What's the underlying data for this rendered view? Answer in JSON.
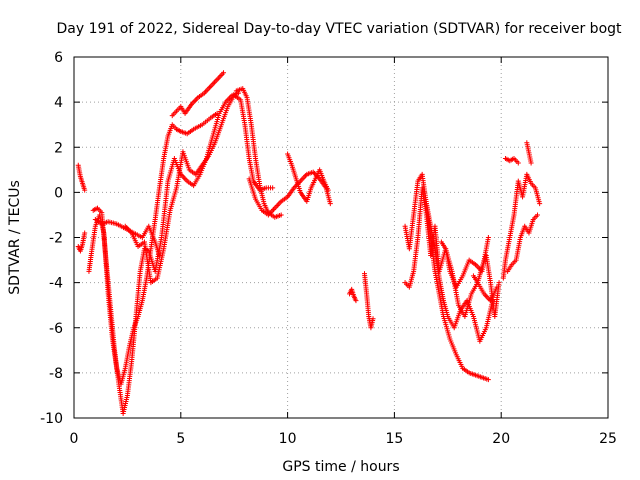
{
  "chart_data": {
    "type": "scatter",
    "title": "Day 191 of 2022, Sidereal Day-to-day VTEC variation (SDTVAR) for receiver bogt",
    "xlabel": "GPS time / hours",
    "ylabel": "SDTVAR / TECUs",
    "xlim": [
      0,
      25
    ],
    "ylim": [
      -10,
      6
    ],
    "xticks": [
      0,
      5,
      10,
      15,
      20,
      25
    ],
    "yticks": [
      -10,
      -8,
      -6,
      -4,
      -2,
      0,
      2,
      4,
      6
    ],
    "grid": true,
    "marker": "+",
    "series": [
      {
        "name": "SDTVAR",
        "color": "#ff0000",
        "tracks": [
          {
            "x": [
              0.2,
              0.3,
              0.4,
              0.5
            ],
            "y": [
              1.2,
              0.7,
              0.4,
              0.1
            ]
          },
          {
            "x": [
              0.2,
              0.3,
              0.4,
              0.5
            ],
            "y": [
              -2.4,
              -2.6,
              -2.3,
              -1.8
            ]
          },
          {
            "x": [
              0.7,
              0.8,
              1.0,
              1.2,
              1.4,
              1.6,
              1.8,
              2.0,
              2.2,
              2.4,
              2.6,
              2.8,
              3.0,
              3.2,
              3.4,
              3.6,
              3.8,
              4.0,
              4.2,
              4.4,
              4.6,
              4.8,
              5.0,
              5.3,
              5.6,
              6.0,
              6.4,
              6.7
            ],
            "y": [
              -3.5,
              -2.8,
              -1.5,
              -1.0,
              -1.8,
              -4.5,
              -6.5,
              -7.8,
              -8.5,
              -7.8,
              -6.8,
              -6.0,
              -5.5,
              -4.8,
              -3.8,
              -2.5,
              -1.2,
              0.2,
              1.5,
              2.5,
              3.0,
              2.8,
              2.7,
              2.6,
              2.8,
              3.0,
              3.3,
              3.5
            ]
          },
          {
            "x": [
              0.9,
              1.1,
              1.3,
              1.5,
              1.7,
              1.9,
              2.1,
              2.3,
              2.5,
              2.7,
              2.9,
              3.1,
              3.3,
              3.5,
              3.8,
              4.1,
              4.4,
              4.7,
              5.0,
              5.3,
              5.6,
              5.9,
              6.2,
              6.5,
              6.8,
              7.1,
              7.4,
              7.7
            ],
            "y": [
              -0.8,
              -0.7,
              -0.9,
              -3.0,
              -5.0,
              -7.0,
              -8.5,
              -9.8,
              -9.0,
              -7.5,
              -5.5,
              -3.5,
              -2.5,
              -2.6,
              -3.5,
              -2.0,
              0.5,
              1.5,
              0.8,
              0.5,
              0.3,
              0.8,
              1.5,
              2.5,
              3.5,
              4.0,
              4.3,
              4.4
            ]
          },
          {
            "x": [
              1.0,
              1.3,
              1.6,
              2.0,
              2.4,
              2.8,
              3.2,
              3.5,
              3.8,
              4.0
            ],
            "y": [
              -1.2,
              -1.4,
              -1.3,
              -1.4,
              -1.6,
              -1.8,
              -2.0,
              -1.5,
              -2.2,
              -2.8
            ]
          },
          {
            "x": [
              2.4,
              2.7,
              3.0,
              3.3,
              3.6,
              3.9,
              4.2,
              4.5,
              4.8,
              5.1,
              5.4,
              5.7,
              6.0,
              6.3,
              6.6,
              6.9,
              7.2,
              7.5,
              7.8,
              8.0,
              8.2,
              8.4,
              8.7,
              9.0,
              9.3
            ],
            "y": [
              -1.5,
              -1.8,
              -2.4,
              -2.2,
              -4.0,
              -3.8,
              -2.5,
              -0.8,
              0.2,
              1.8,
              1.0,
              0.8,
              1.2,
              1.6,
              2.2,
              3.0,
              3.8,
              4.3,
              4.1,
              3.0,
              1.5,
              0.5,
              0.1,
              0.2,
              0.2
            ]
          },
          {
            "x": [
              4.6,
              4.8,
              5.0,
              5.2,
              5.5,
              5.8,
              6.1,
              6.4,
              6.7,
              7.0
            ],
            "y": [
              3.4,
              3.6,
              3.8,
              3.5,
              3.9,
              4.2,
              4.4,
              4.7,
              5.0,
              5.3
            ]
          },
          {
            "x": [
              7.6,
              7.9,
              8.1,
              8.3,
              8.5,
              8.7,
              8.9,
              9.1,
              9.4,
              9.7
            ],
            "y": [
              4.5,
              4.6,
              4.2,
              3.0,
              1.5,
              0.3,
              -0.5,
              -0.9,
              -1.1,
              -1.0
            ]
          },
          {
            "x": [
              8.2,
              8.5,
              8.8,
              9.1,
              9.4,
              9.7,
              10.0,
              10.3,
              10.6,
              10.9,
              11.2,
              11.5,
              11.8,
              12.0
            ],
            "y": [
              0.6,
              -0.3,
              -0.8,
              -1.0,
              -0.7,
              -0.4,
              -0.2,
              0.2,
              0.5,
              0.8,
              0.9,
              0.6,
              0.2,
              -0.5
            ]
          },
          {
            "x": [
              10.0,
              10.2,
              10.4,
              10.6,
              10.9,
              11.1,
              11.3,
              11.5,
              11.7,
              11.9
            ],
            "y": [
              1.7,
              1.2,
              0.6,
              0.0,
              -0.4,
              0.2,
              0.6,
              1.0,
              0.5,
              0.1
            ]
          },
          {
            "x": [
              12.9,
              13.0,
              13.1,
              13.2
            ],
            "y": [
              -4.5,
              -4.3,
              -4.6,
              -4.8
            ]
          },
          {
            "x": [
              13.6,
              13.7,
              13.8,
              13.9,
              14.0
            ],
            "y": [
              -3.6,
              -4.5,
              -5.5,
              -6.0,
              -5.6
            ]
          },
          {
            "x": [
              15.5,
              15.7,
              15.9,
              16.1,
              16.3,
              16.5,
              16.7,
              16.9,
              17.1,
              17.3,
              17.6,
              17.9,
              18.2,
              18.5,
              18.8,
              19.1,
              19.4
            ],
            "y": [
              -1.5,
              -2.5,
              -1.0,
              0.5,
              0.8,
              -0.5,
              -2.0,
              -3.5,
              -4.5,
              -5.5,
              -6.5,
              -7.2,
              -7.8,
              -8.0,
              -8.1,
              -8.2,
              -8.3
            ]
          },
          {
            "x": [
              15.5,
              15.7,
              15.9,
              16.1,
              16.3,
              16.5,
              16.7,
              16.9,
              17.1,
              17.4,
              17.7,
              18.0,
              18.3,
              18.6,
              18.9,
              19.2,
              19.5,
              19.8
            ],
            "y": [
              -4.0,
              -4.2,
              -3.5,
              -2.0,
              0.2,
              -1.0,
              -2.8,
              -1.5,
              -3.5,
              -2.5,
              -3.5,
              -5.0,
              -5.5,
              -4.5,
              -4.0,
              -4.5,
              -4.8,
              -4.2
            ]
          },
          {
            "x": [
              16.5,
              16.7,
              16.9,
              17.1,
              17.3,
              17.5,
              17.8,
              18.1,
              18.4,
              18.7,
              19.0,
              19.3,
              19.6
            ],
            "y": [
              -0.5,
              -1.5,
              -2.5,
              -3.8,
              -4.8,
              -5.5,
              -6.0,
              -5.2,
              -4.8,
              -5.5,
              -6.6,
              -6.0,
              -4.8
            ]
          },
          {
            "x": [
              17.2,
              17.4,
              17.6,
              17.9,
              18.2,
              18.5,
              18.8,
              19.1,
              19.4
            ],
            "y": [
              -2.2,
              -2.5,
              -3.5,
              -4.2,
              -3.7,
              -3.0,
              -3.2,
              -3.5,
              -2.0
            ]
          },
          {
            "x": [
              18.7,
              18.9,
              19.1,
              19.3,
              19.5,
              19.7,
              19.9
            ],
            "y": [
              -3.7,
              -4.0,
              -3.3,
              -2.8,
              -4.0,
              -5.5,
              -4.0
            ]
          },
          {
            "x": [
              20.1,
              20.2,
              20.4,
              20.6,
              20.8,
              21.0,
              21.2,
              21.4,
              21.6,
              21.8
            ],
            "y": [
              -3.8,
              -3.0,
              -2.0,
              -1.0,
              0.5,
              -0.2,
              0.8,
              0.4,
              0.2,
              -0.5
            ]
          },
          {
            "x": [
              20.3,
              20.5,
              20.7,
              20.9,
              21.1,
              21.3,
              21.5,
              21.7
            ],
            "y": [
              -3.5,
              -3.2,
              -3.0,
              -2.0,
              -1.5,
              -1.8,
              -1.2,
              -1.0
            ]
          },
          {
            "x": [
              20.2,
              20.4,
              20.6,
              20.8
            ],
            "y": [
              1.5,
              1.4,
              1.5,
              1.3
            ]
          },
          {
            "x": [
              21.2,
              21.4
            ],
            "y": [
              2.2,
              1.3
            ]
          }
        ]
      }
    ]
  }
}
